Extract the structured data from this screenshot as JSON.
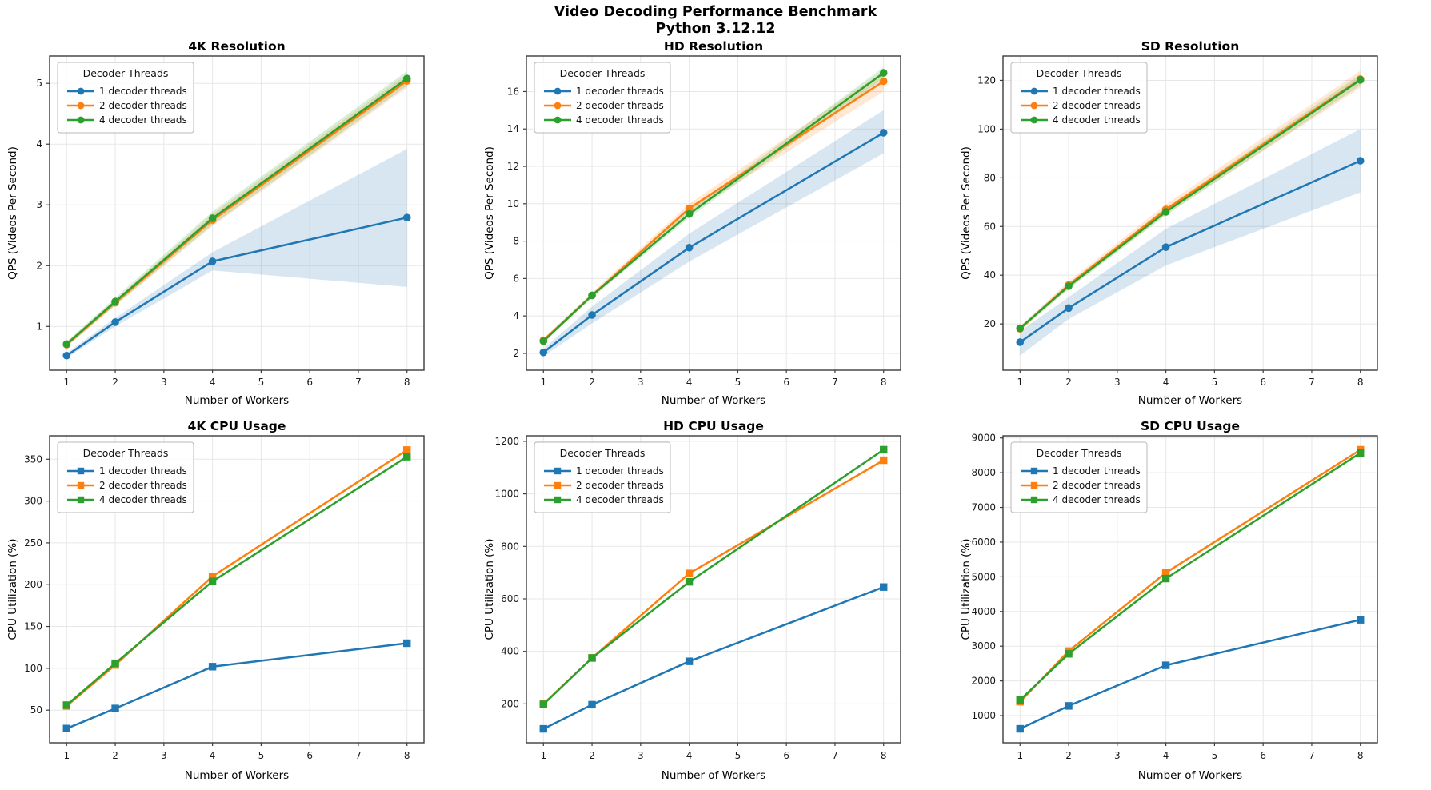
{
  "figure": {
    "suptitle_line1": "Video Decoding Performance Benchmark",
    "suptitle_line2": "Python 3.12.12"
  },
  "style": {
    "grid_color": "#e7e7e7",
    "spine_color": "#3b3b3b",
    "band_opacity": 0.18,
    "legend_border": "#b8b8b8",
    "legend_bg_opacity": 0.85
  },
  "chart_data": [
    {
      "id": "4k-qps",
      "type": "line",
      "title": "4K Resolution",
      "xlabel": "Number of Workers",
      "ylabel": "QPS (Videos Per Second)",
      "legend_title": "Decoder Threads",
      "legend_position": "upper-left",
      "marker": "circle",
      "grid": true,
      "x": [
        1,
        2,
        4,
        8
      ],
      "xticks": [
        1,
        2,
        3,
        4,
        5,
        6,
        7,
        8
      ],
      "xlim": [
        0.65,
        8.35
      ],
      "yticks": [
        1,
        2,
        3,
        4,
        5
      ],
      "ylim": [
        0.28,
        5.45
      ],
      "series": [
        {
          "name": "1 decoder threads",
          "color": "#1f77b4",
          "values": [
            0.52,
            1.07,
            2.07,
            2.79
          ],
          "band_lower": [
            0.48,
            1.0,
            1.92,
            1.65
          ],
          "band_upper": [
            0.56,
            1.14,
            2.22,
            3.92
          ]
        },
        {
          "name": "2 decoder threads",
          "color": "#ff7f0e",
          "values": [
            0.7,
            1.39,
            2.75,
            5.04
          ],
          "band_lower": [
            0.66,
            1.34,
            2.65,
            4.93
          ],
          "band_upper": [
            0.74,
            1.44,
            2.85,
            5.15
          ]
        },
        {
          "name": "4 decoder threads",
          "color": "#2ca02c",
          "values": [
            0.71,
            1.41,
            2.78,
            5.08
          ],
          "band_lower": [
            0.67,
            1.35,
            2.67,
            4.96
          ],
          "band_upper": [
            0.75,
            1.47,
            2.89,
            5.2
          ]
        }
      ]
    },
    {
      "id": "hd-qps",
      "type": "line",
      "title": "HD Resolution",
      "xlabel": "Number of Workers",
      "ylabel": "QPS (Videos Per Second)",
      "legend_title": "Decoder Threads",
      "legend_position": "upper-left",
      "marker": "circle",
      "grid": true,
      "x": [
        1,
        2,
        4,
        8
      ],
      "xticks": [
        1,
        2,
        3,
        4,
        5,
        6,
        7,
        8
      ],
      "xlim": [
        0.65,
        8.35
      ],
      "yticks": [
        2,
        4,
        6,
        8,
        10,
        12,
        14,
        16
      ],
      "ylim": [
        1.1,
        17.9
      ],
      "series": [
        {
          "name": "1 decoder threads",
          "color": "#1f77b4",
          "values": [
            2.05,
            4.05,
            7.65,
            13.8
          ],
          "band_lower": [
            1.85,
            3.6,
            6.9,
            12.7
          ],
          "band_upper": [
            2.25,
            4.5,
            8.4,
            15.0
          ]
        },
        {
          "name": "2 decoder threads",
          "color": "#ff7f0e",
          "values": [
            2.7,
            5.1,
            9.75,
            16.55
          ],
          "band_lower": [
            2.6,
            4.95,
            9.5,
            16.0
          ],
          "band_upper": [
            2.8,
            5.25,
            10.0,
            17.1
          ]
        },
        {
          "name": "4 decoder threads",
          "color": "#2ca02c",
          "values": [
            2.65,
            5.1,
            9.45,
            17.0
          ],
          "band_lower": [
            2.55,
            5.0,
            9.25,
            16.7
          ],
          "band_upper": [
            2.75,
            5.2,
            9.65,
            17.3
          ]
        }
      ]
    },
    {
      "id": "sd-qps",
      "type": "line",
      "title": "SD Resolution",
      "xlabel": "Number of Workers",
      "ylabel": "QPS (Videos Per Second)",
      "legend_title": "Decoder Threads",
      "legend_position": "upper-left",
      "marker": "circle",
      "grid": true,
      "x": [
        1,
        2,
        4,
        8
      ],
      "xticks": [
        1,
        2,
        3,
        4,
        5,
        6,
        7,
        8
      ],
      "xlim": [
        0.65,
        8.35
      ],
      "yticks": [
        20,
        40,
        60,
        80,
        100,
        120
      ],
      "ylim": [
        1,
        130
      ],
      "series": [
        {
          "name": "1 decoder threads",
          "color": "#1f77b4",
          "values": [
            12.5,
            26.5,
            51.5,
            87
          ],
          "band_lower": [
            7,
            22,
            44,
            74
          ],
          "band_upper": [
            17,
            31,
            59,
            100
          ]
        },
        {
          "name": "2 decoder threads",
          "color": "#ff7f0e",
          "values": [
            18,
            36,
            67,
            120.5
          ],
          "band_lower": [
            17,
            34.5,
            65,
            117
          ],
          "band_upper": [
            19,
            37.5,
            69,
            124
          ]
        },
        {
          "name": "4 decoder threads",
          "color": "#2ca02c",
          "values": [
            18.2,
            35.5,
            66,
            120.2
          ],
          "band_lower": [
            17.4,
            34.4,
            64.5,
            118
          ],
          "band_upper": [
            19,
            36.6,
            67.5,
            122.5
          ]
        }
      ]
    },
    {
      "id": "4k-cpu",
      "type": "line",
      "title": "4K CPU Usage",
      "xlabel": "Number of Workers",
      "ylabel": "CPU Utilization (%)",
      "legend_title": "Decoder Threads",
      "legend_position": "upper-left",
      "marker": "square",
      "grid": true,
      "x": [
        1,
        2,
        4,
        8
      ],
      "xticks": [
        1,
        2,
        3,
        4,
        5,
        6,
        7,
        8
      ],
      "xlim": [
        0.65,
        8.35
      ],
      "yticks": [
        50,
        100,
        150,
        200,
        250,
        300,
        350
      ],
      "ylim": [
        11,
        378
      ],
      "series": [
        {
          "name": "1 decoder threads",
          "color": "#1f77b4",
          "values": [
            28,
            52,
            102,
            130
          ]
        },
        {
          "name": "2 decoder threads",
          "color": "#ff7f0e",
          "values": [
            55,
            104,
            210,
            361
          ]
        },
        {
          "name": "4 decoder threads",
          "color": "#2ca02c",
          "values": [
            56,
            106,
            204,
            353
          ]
        }
      ]
    },
    {
      "id": "hd-cpu",
      "type": "line",
      "title": "HD CPU Usage",
      "xlabel": "Number of Workers",
      "ylabel": "CPU Utilization (%)",
      "legend_title": "Decoder Threads",
      "legend_position": "upper-left",
      "marker": "square",
      "grid": true,
      "x": [
        1,
        2,
        4,
        8
      ],
      "xticks": [
        1,
        2,
        3,
        4,
        5,
        6,
        7,
        8
      ],
      "xlim": [
        0.65,
        8.35
      ],
      "yticks": [
        200,
        400,
        600,
        800,
        1000,
        1200
      ],
      "ylim": [
        52,
        1221
      ],
      "series": [
        {
          "name": "1 decoder threads",
          "color": "#1f77b4",
          "values": [
            105,
            197,
            362,
            645
          ]
        },
        {
          "name": "2 decoder threads",
          "color": "#ff7f0e",
          "values": [
            200,
            375,
            697,
            1128
          ]
        },
        {
          "name": "4 decoder threads",
          "color": "#2ca02c",
          "values": [
            198,
            375,
            665,
            1168
          ]
        }
      ]
    },
    {
      "id": "sd-cpu",
      "type": "line",
      "title": "SD CPU Usage",
      "xlabel": "Number of Workers",
      "ylabel": "CPU Utilization (%)",
      "legend_title": "Decoder Threads",
      "legend_position": "upper-left",
      "marker": "square",
      "grid": true,
      "x": [
        1,
        2,
        4,
        8
      ],
      "xticks": [
        1,
        2,
        3,
        4,
        5,
        6,
        7,
        8
      ],
      "xlim": [
        0.65,
        8.35
      ],
      "yticks": [
        1000,
        2000,
        3000,
        4000,
        5000,
        6000,
        7000,
        8000,
        9000
      ],
      "ylim": [
        218,
        9062
      ],
      "series": [
        {
          "name": "1 decoder threads",
          "color": "#1f77b4",
          "values": [
            620,
            1280,
            2450,
            3760
          ]
        },
        {
          "name": "2 decoder threads",
          "color": "#ff7f0e",
          "values": [
            1400,
            2860,
            5120,
            8660
          ]
        },
        {
          "name": "4 decoder threads",
          "color": "#2ca02c",
          "values": [
            1450,
            2780,
            4950,
            8570
          ]
        }
      ]
    }
  ]
}
